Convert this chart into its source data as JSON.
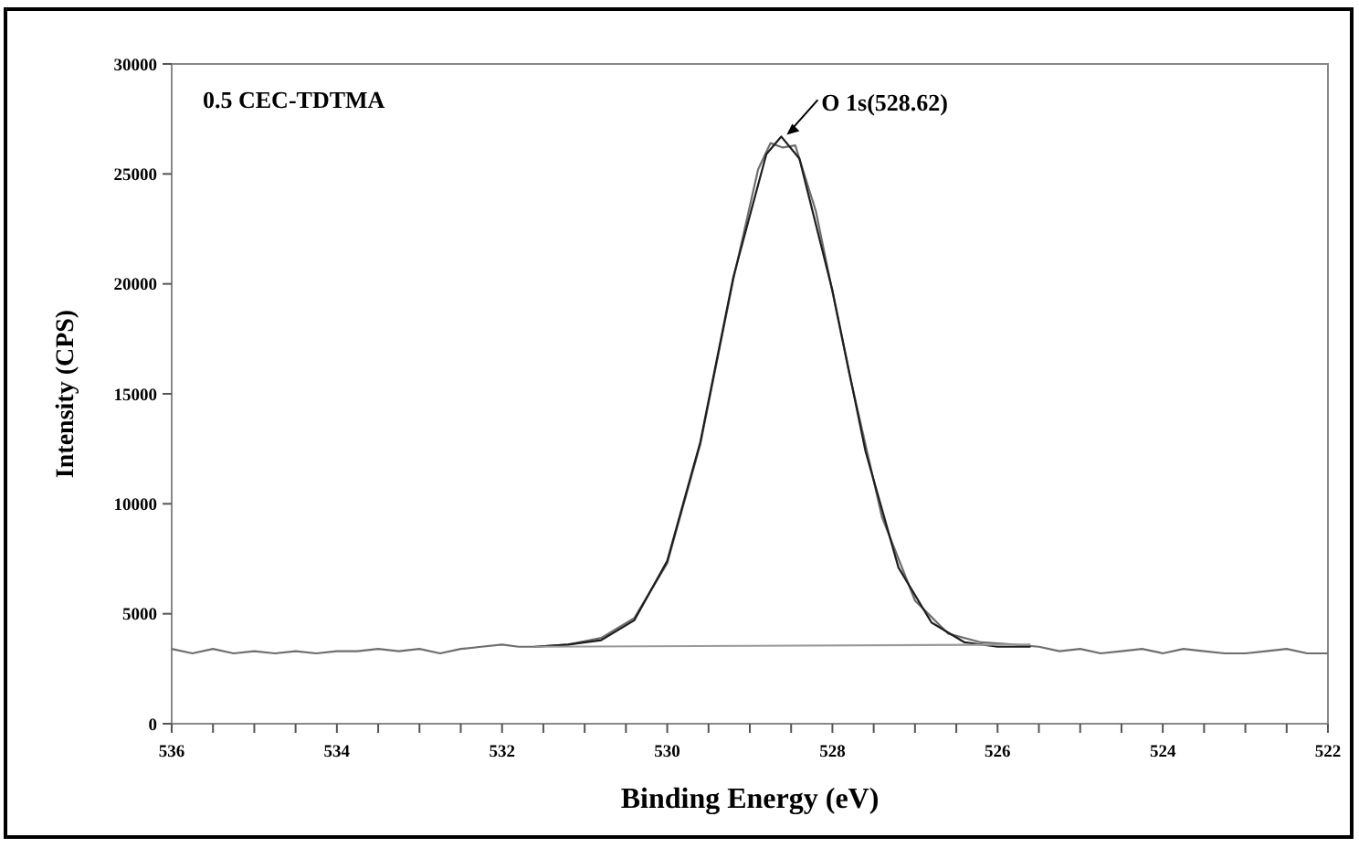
{
  "chart_data": {
    "type": "line",
    "xlabel": "Binding Energy (eV)",
    "ylabel": "Intensity (CPS)",
    "xlim": [
      536,
      522
    ],
    "ylim": [
      0,
      30000
    ],
    "xticks": [
      536,
      {
        "value": 535.5,
        "label": null
      },
      {
        "value": 535,
        "label": null
      },
      {
        "value": 534.5,
        "label": null
      },
      534,
      {
        "value": 533.5,
        "label": null
      },
      {
        "value": 533,
        "label": null
      },
      {
        "value": 532.5,
        "label": null
      },
      532,
      {
        "value": 531.5,
        "label": null
      },
      {
        "value": 531,
        "label": null
      },
      {
        "value": 530.5,
        "label": null
      },
      530,
      {
        "value": 529.5,
        "label": null
      },
      {
        "value": 529,
        "label": null
      },
      {
        "value": 528.5,
        "label": null
      },
      528,
      {
        "value": 527.5,
        "label": null
      },
      {
        "value": 527,
        "label": null
      },
      {
        "value": 526.5,
        "label": null
      },
      526,
      {
        "value": 525.5,
        "label": null
      },
      {
        "value": 525,
        "label": null
      },
      {
        "value": 524.5,
        "label": null
      },
      524,
      {
        "value": 523.5,
        "label": null
      },
      {
        "value": 523,
        "label": null
      },
      {
        "value": 522.5,
        "label": null
      },
      522
    ],
    "yticks": [
      0,
      5000,
      10000,
      15000,
      20000,
      25000,
      30000
    ],
    "grid": false,
    "marker": "none",
    "line_style": "solid",
    "series": [
      {
        "color": "#6e6e6e",
        "x": [
          536,
          535.75,
          535.5,
          535.25,
          535,
          534.75,
          534.5,
          534.25,
          534,
          533.75,
          533.5,
          533.25,
          533,
          532.75,
          532.5,
          532.25,
          532,
          531.8,
          531.6,
          531.2,
          530.8,
          530.4,
          530.0,
          529.6,
          529.2,
          528.9,
          528.75,
          528.6,
          528.45,
          528.2,
          527.8,
          527.4,
          527.0,
          526.6,
          526.2,
          525.8,
          525.5,
          525.25,
          525,
          524.75,
          524.5,
          524.25,
          524,
          523.75,
          523.5,
          523.25,
          523,
          522.75,
          522.5,
          522.25,
          522
        ],
        "values": [
          3400,
          3200,
          3400,
          3200,
          3300,
          3200,
          3300,
          3200,
          3300,
          3300,
          3400,
          3300,
          3400,
          3200,
          3400,
          3500,
          3600,
          3500,
          3500,
          3600,
          3900,
          4800,
          7300,
          12700,
          20200,
          25200,
          26400,
          26200,
          26300,
          23300,
          16000,
          9400,
          5600,
          4100,
          3700,
          3600,
          3500,
          3300,
          3400,
          3200,
          3300,
          3400,
          3200,
          3400,
          3300,
          3200,
          3200,
          3300,
          3400,
          3200,
          3200
        ]
      },
      {
        "color": "#1e1e1e",
        "x": [
          531.6,
          531.2,
          530.8,
          530.4,
          530.0,
          529.6,
          529.2,
          528.8,
          528.62,
          528.4,
          528.0,
          527.6,
          527.2,
          526.8,
          526.4,
          526.0,
          525.6
        ],
        "values": [
          3500,
          3600,
          3800,
          4700,
          7400,
          12800,
          20300,
          25900,
          26700,
          25700,
          19700,
          12400,
          7100,
          4600,
          3700,
          3500,
          3500
        ]
      },
      {
        "color": "#9a9a9a",
        "x": [
          531.6,
          525.6
        ],
        "values": [
          3500,
          3600
        ]
      }
    ],
    "annotations": [
      "0.5 CEC-TDTMA",
      {
        "text": "O 1s(528.62)",
        "x": 528.62,
        "y": 26700
      }
    ]
  }
}
